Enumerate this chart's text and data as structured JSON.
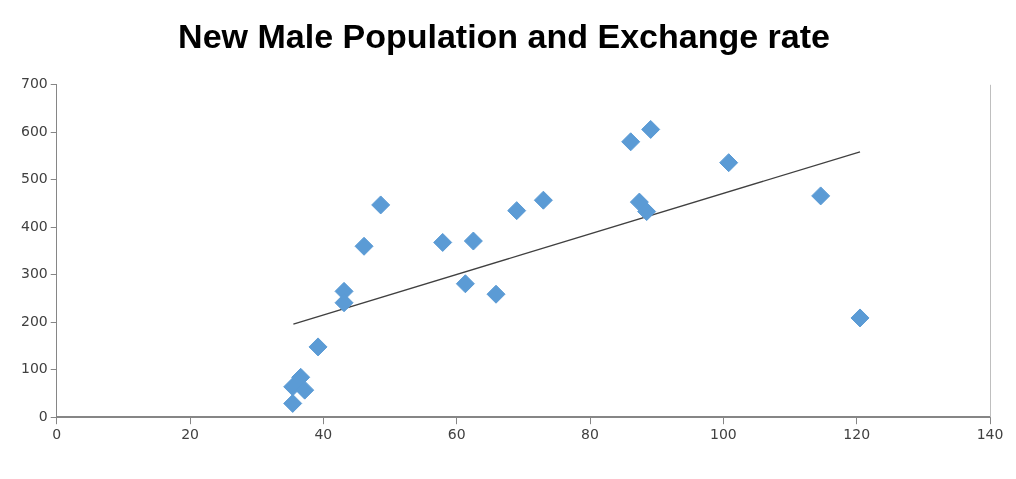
{
  "chart_data": {
    "type": "scatter",
    "title": "New Male Population and Exchange rate",
    "xlim": [
      0,
      140
    ],
    "xticks": [
      0,
      20,
      40,
      60,
      80,
      100,
      120,
      140
    ],
    "ylim": [
      0,
      700
    ],
    "yticks": [
      0,
      100,
      200,
      300,
      400,
      500,
      600,
      700
    ],
    "grid": false,
    "legend": false,
    "marker": "diamond",
    "series": [
      {
        "type": "scatter",
        "color": "#5b9bd5",
        "x": [
          35.4,
          35.4,
          36.6,
          37.2,
          39.2,
          43.1,
          43.1,
          46.1,
          48.6,
          57.9,
          62.5,
          61.3,
          65.9,
          69.0,
          73.0,
          86.1,
          89.1,
          87.4,
          88.5,
          100.8,
          114.6,
          120.5
        ],
        "values": [
          29,
          64,
          84,
          57,
          148,
          265,
          241,
          360,
          447,
          368,
          371,
          281,
          259,
          435,
          457,
          580,
          606,
          453,
          433,
          536,
          466,
          209
        ]
      },
      {
        "type": "line",
        "color": "#404040",
        "marker": "none",
        "line_style": "solid",
        "x": [
          35.5,
          120.5
        ],
        "values": [
          196,
          559
        ]
      }
    ]
  }
}
